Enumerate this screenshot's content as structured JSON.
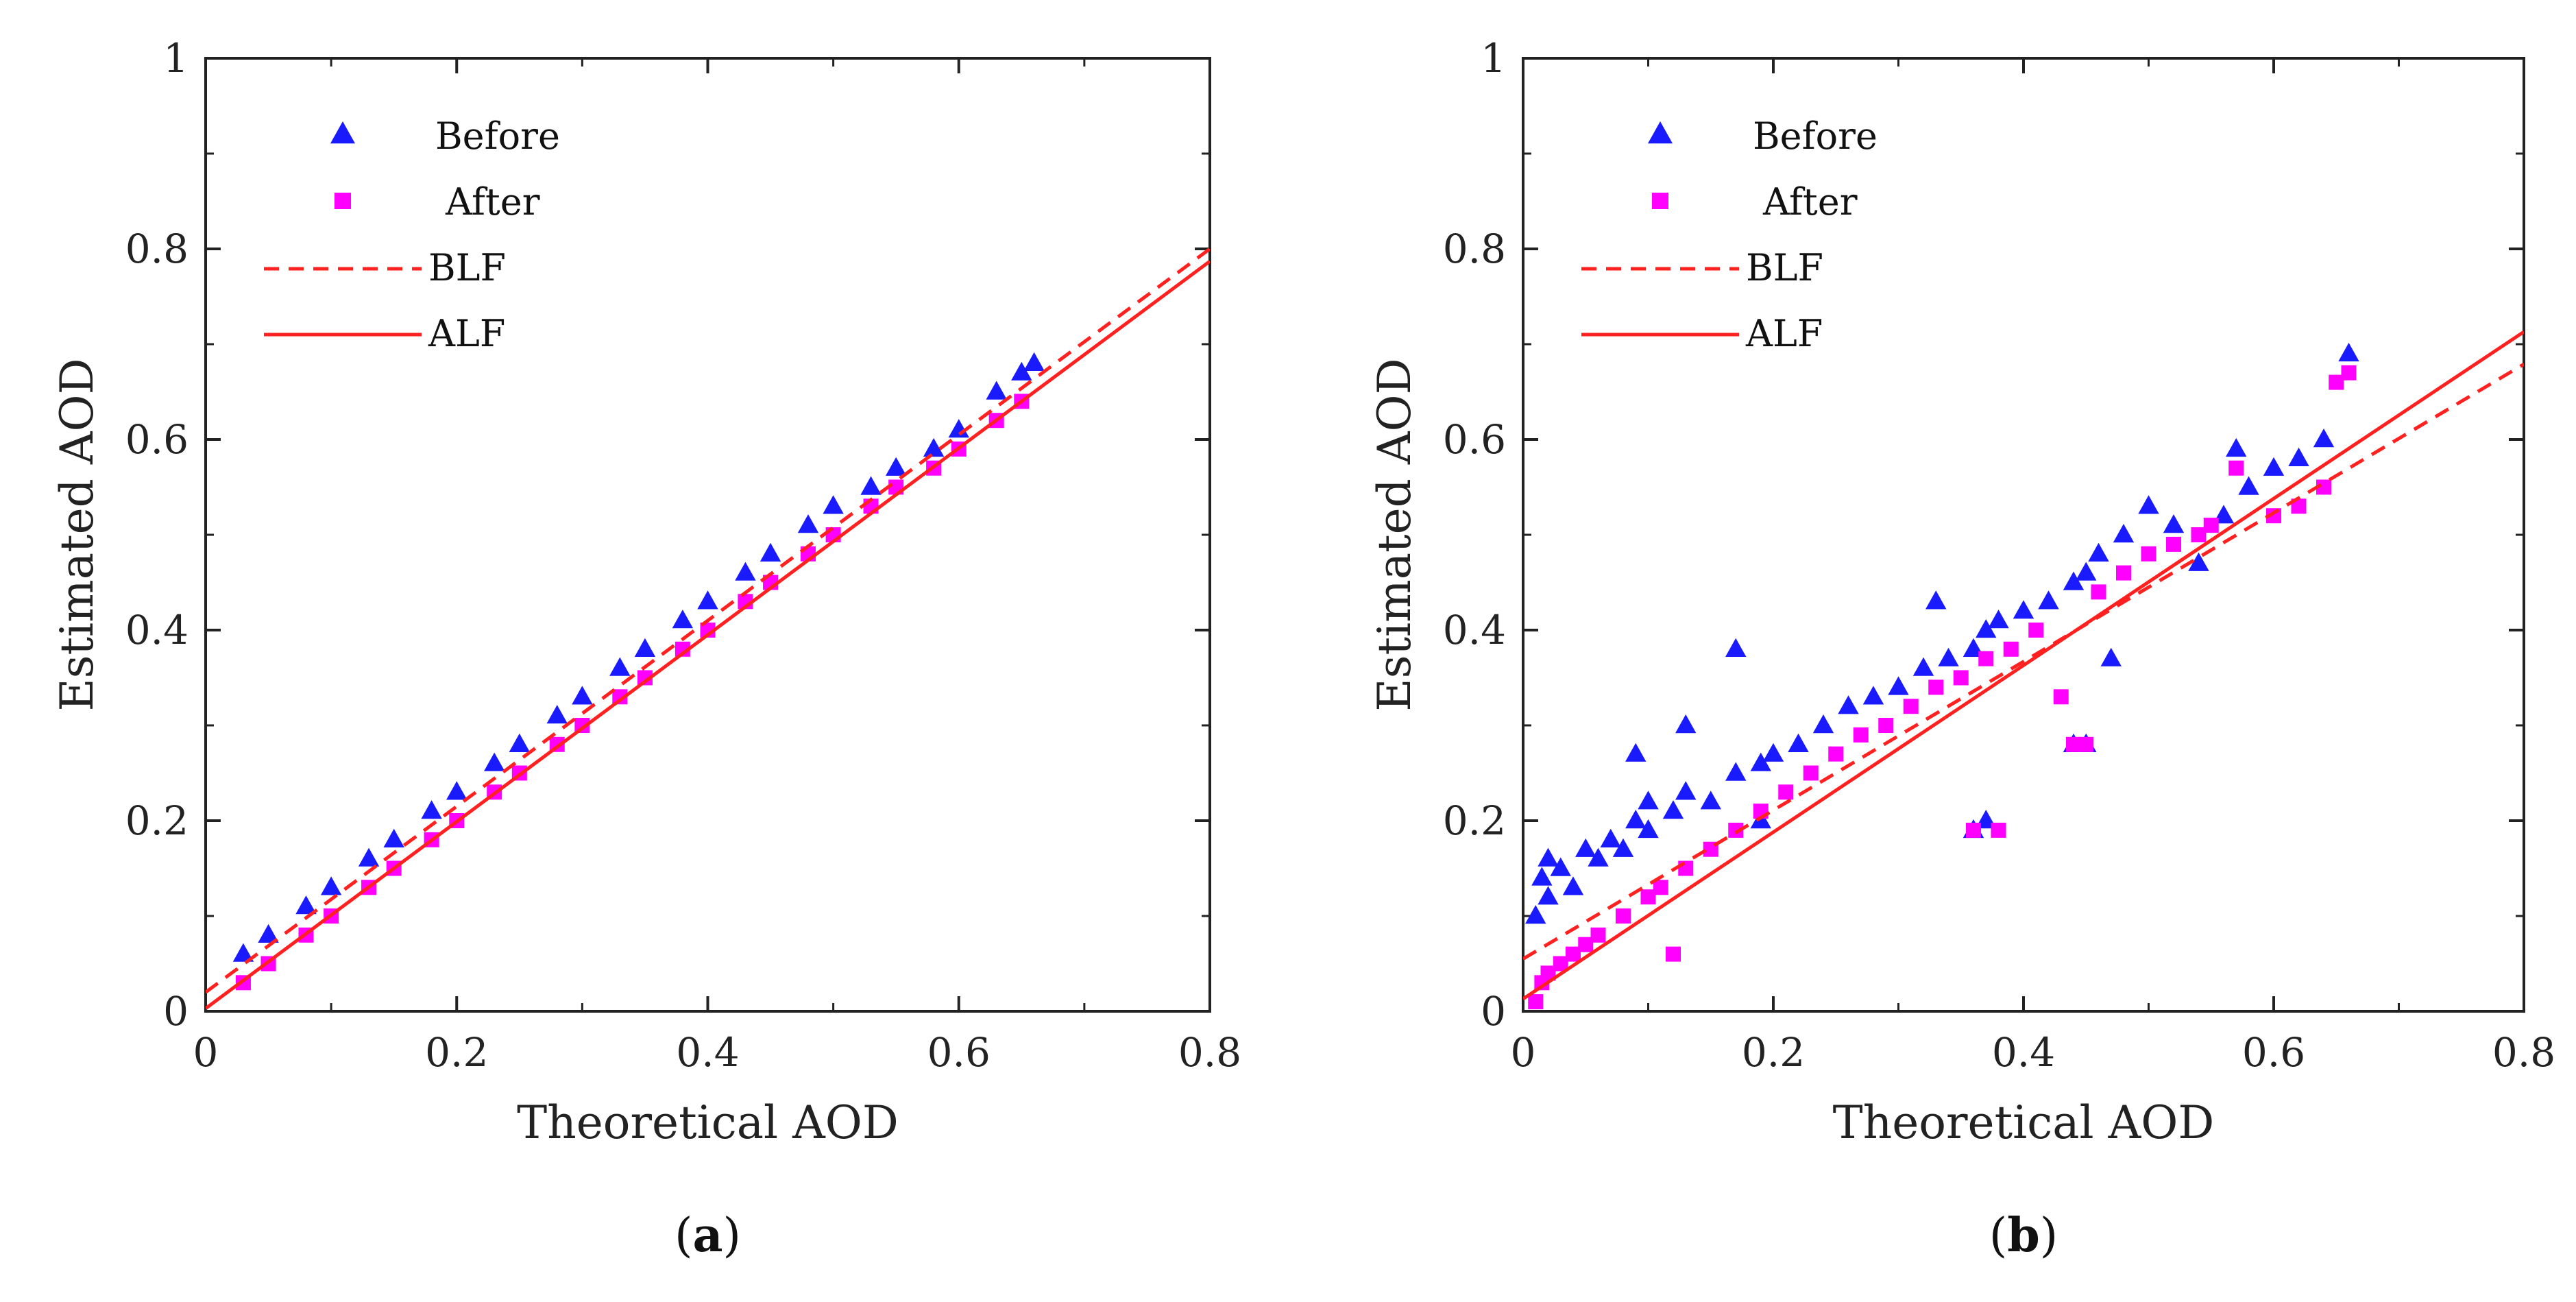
{
  "chart_data": [
    {
      "type": "scatter",
      "panel_label": "a",
      "xlabel": "Theoretical AOD",
      "ylabel": "Estimated AOD",
      "xlim": [
        0,
        0.8
      ],
      "ylim": [
        0,
        1
      ],
      "x_ticks": [
        "0",
        "0.2",
        "0.4",
        "0.6",
        "0.8"
      ],
      "y_ticks": [
        "0",
        "0.2",
        "0.4",
        "0.6",
        "0.8",
        "1"
      ],
      "x_tick_values": [
        0,
        0.2,
        0.4,
        0.6,
        0.8
      ],
      "y_tick_values": [
        0,
        0.2,
        0.4,
        0.6,
        0.8,
        1
      ],
      "legend_position": "top-left",
      "series": [
        {
          "name": "Before",
          "marker": "triangle",
          "color": "#1a1aff",
          "x": [
            0.03,
            0.05,
            0.08,
            0.1,
            0.13,
            0.15,
            0.18,
            0.2,
            0.23,
            0.25,
            0.28,
            0.3,
            0.33,
            0.35,
            0.38,
            0.4,
            0.43,
            0.45,
            0.48,
            0.5,
            0.53,
            0.55,
            0.58,
            0.6,
            0.63,
            0.65,
            0.66
          ],
          "y": [
            0.06,
            0.08,
            0.11,
            0.13,
            0.16,
            0.18,
            0.21,
            0.23,
            0.26,
            0.28,
            0.31,
            0.33,
            0.36,
            0.38,
            0.41,
            0.43,
            0.46,
            0.48,
            0.51,
            0.53,
            0.55,
            0.57,
            0.59,
            0.61,
            0.65,
            0.67,
            0.68
          ]
        },
        {
          "name": "After",
          "marker": "square",
          "color": "#ff00ff",
          "x": [
            0.03,
            0.05,
            0.08,
            0.1,
            0.13,
            0.15,
            0.18,
            0.2,
            0.23,
            0.25,
            0.28,
            0.3,
            0.33,
            0.35,
            0.38,
            0.4,
            0.43,
            0.45,
            0.48,
            0.5,
            0.53,
            0.55,
            0.58,
            0.6,
            0.63,
            0.65
          ],
          "y": [
            0.03,
            0.05,
            0.08,
            0.1,
            0.13,
            0.15,
            0.18,
            0.2,
            0.23,
            0.25,
            0.28,
            0.3,
            0.33,
            0.35,
            0.38,
            0.4,
            0.43,
            0.45,
            0.48,
            0.5,
            0.53,
            0.55,
            0.57,
            0.59,
            0.62,
            0.64
          ]
        }
      ],
      "fit_lines": [
        {
          "name": "BLF",
          "style": "dashed",
          "color": "#ff2020",
          "slope": 0.975,
          "intercept": 0.02
        },
        {
          "name": "ALF",
          "style": "solid",
          "color": "#ff2020",
          "slope": 0.98,
          "intercept": 0.003
        }
      ]
    },
    {
      "type": "scatter",
      "panel_label": "b",
      "xlabel": "Theoretical AOD",
      "ylabel": "Estimated AOD",
      "xlim": [
        0,
        0.8
      ],
      "ylim": [
        0,
        1
      ],
      "x_ticks": [
        "0",
        "0.2",
        "0.4",
        "0.6",
        "0.8"
      ],
      "y_ticks": [
        "0",
        "0.2",
        "0.4",
        "0.6",
        "0.8",
        "1"
      ],
      "x_tick_values": [
        0,
        0.2,
        0.4,
        0.6,
        0.8
      ],
      "y_tick_values": [
        0,
        0.2,
        0.4,
        0.6,
        0.8,
        1
      ],
      "legend_position": "top-left",
      "series": [
        {
          "name": "Before",
          "marker": "triangle",
          "color": "#1a1aff",
          "x": [
            0.01,
            0.015,
            0.02,
            0.02,
            0.03,
            0.04,
            0.05,
            0.06,
            0.07,
            0.08,
            0.09,
            0.1,
            0.1,
            0.12,
            0.13,
            0.15,
            0.17,
            0.19,
            0.2,
            0.22,
            0.24,
            0.26,
            0.28,
            0.3,
            0.32,
            0.34,
            0.36,
            0.37,
            0.38,
            0.4,
            0.42,
            0.44,
            0.45,
            0.46,
            0.48,
            0.5,
            0.52,
            0.54,
            0.56,
            0.58,
            0.6,
            0.62,
            0.64,
            0.66,
            0.09,
            0.13,
            0.17,
            0.19,
            0.33,
            0.36,
            0.37,
            0.44,
            0.45,
            0.47,
            0.57
          ],
          "y": [
            0.1,
            0.14,
            0.12,
            0.16,
            0.15,
            0.13,
            0.17,
            0.16,
            0.18,
            0.17,
            0.2,
            0.19,
            0.22,
            0.21,
            0.23,
            0.22,
            0.25,
            0.26,
            0.27,
            0.28,
            0.3,
            0.32,
            0.33,
            0.34,
            0.36,
            0.37,
            0.38,
            0.4,
            0.41,
            0.42,
            0.43,
            0.45,
            0.46,
            0.48,
            0.5,
            0.53,
            0.51,
            0.47,
            0.52,
            0.55,
            0.57,
            0.58,
            0.6,
            0.69,
            0.27,
            0.3,
            0.38,
            0.2,
            0.43,
            0.19,
            0.2,
            0.28,
            0.28,
            0.37,
            0.59
          ]
        },
        {
          "name": "After",
          "marker": "square",
          "color": "#ff00ff",
          "x": [
            0.01,
            0.015,
            0.02,
            0.03,
            0.04,
            0.05,
            0.06,
            0.08,
            0.1,
            0.11,
            0.13,
            0.15,
            0.17,
            0.19,
            0.21,
            0.23,
            0.25,
            0.27,
            0.29,
            0.31,
            0.33,
            0.35,
            0.36,
            0.37,
            0.38,
            0.39,
            0.41,
            0.43,
            0.44,
            0.45,
            0.46,
            0.48,
            0.5,
            0.52,
            0.54,
            0.55,
            0.57,
            0.6,
            0.62,
            0.64,
            0.65,
            0.66,
            0.12
          ],
          "y": [
            0.01,
            0.03,
            0.04,
            0.05,
            0.06,
            0.07,
            0.08,
            0.1,
            0.12,
            0.13,
            0.15,
            0.17,
            0.19,
            0.21,
            0.23,
            0.25,
            0.27,
            0.29,
            0.3,
            0.32,
            0.34,
            0.35,
            0.19,
            0.37,
            0.19,
            0.38,
            0.4,
            0.33,
            0.28,
            0.28,
            0.44,
            0.46,
            0.48,
            0.49,
            0.5,
            0.51,
            0.57,
            0.52,
            0.53,
            0.55,
            0.66,
            0.67,
            0.06
          ]
        }
      ],
      "fit_lines": [
        {
          "name": "BLF",
          "style": "dashed",
          "color": "#ff2020",
          "slope": 0.78,
          "intercept": 0.055
        },
        {
          "name": "ALF",
          "style": "solid",
          "color": "#ff2020",
          "slope": 0.875,
          "intercept": 0.013
        }
      ]
    }
  ]
}
